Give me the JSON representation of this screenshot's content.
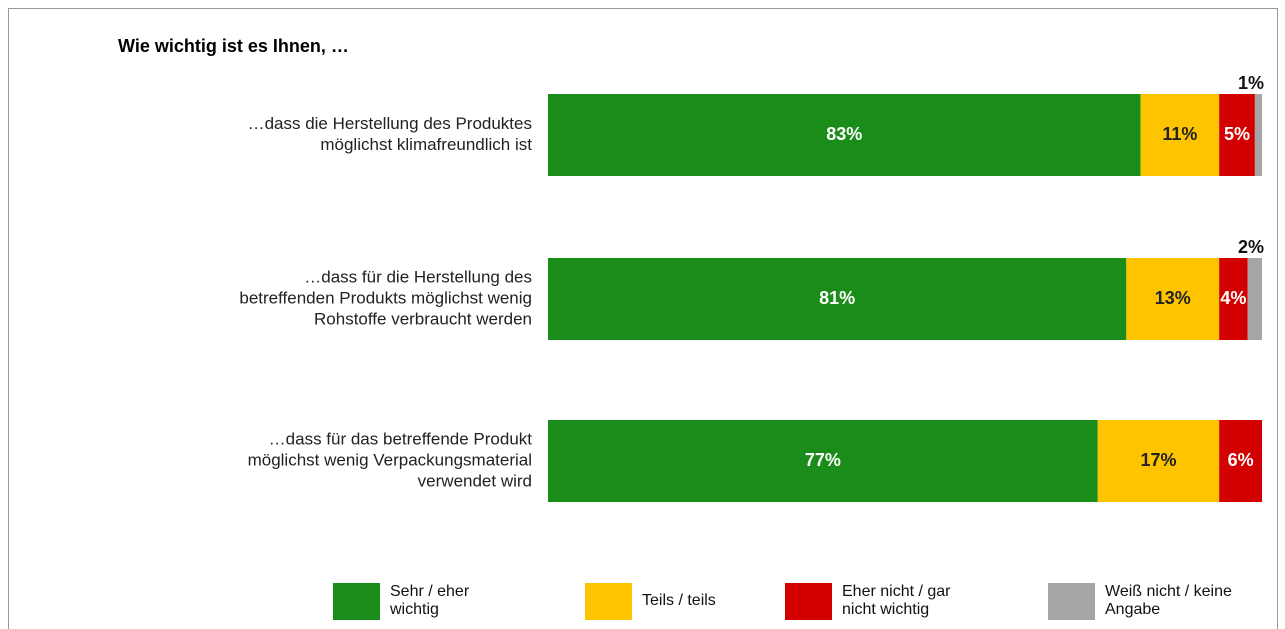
{
  "chart_data": {
    "type": "stacked-bar-horizontal",
    "title": "Wie wichtig ist es Ihnen, …",
    "categories": [
      [
        "…dass die Herstellung des Produktes",
        "möglichst klimafreundlich ist"
      ],
      [
        "…dass für die Herstellung des",
        "betreffenden Produkts möglichst wenig",
        "Rohstoffe verbraucht werden"
      ],
      [
        "…dass für das betreffende Produkt",
        "möglichst wenig Verpackungsmaterial",
        "verwendet wird"
      ]
    ],
    "xlim": [
      0,
      100
    ],
    "series": [
      {
        "name": "Sehr / eher wichtig",
        "color": "#1a8c1a",
        "values": [
          83,
          81,
          77
        ],
        "value_labels": [
          "83%",
          "81%",
          "77%"
        ]
      },
      {
        "name": "Teils / teils",
        "color": "#ffc400",
        "values": [
          11,
          13,
          17
        ],
        "value_labels": [
          "11%",
          "13%",
          "17%"
        ]
      },
      {
        "name": "Eher nicht / gar nicht wichtig",
        "color": "#d20000",
        "values": [
          5,
          4,
          6
        ],
        "value_labels": [
          "5%",
          "4%",
          "6%"
        ]
      },
      {
        "name": "Weiß nicht / keine Angabe",
        "color": "#a6a6a6",
        "values": [
          1,
          2,
          null
        ],
        "value_labels": [
          "1%",
          "2%",
          null
        ]
      }
    ]
  }
}
